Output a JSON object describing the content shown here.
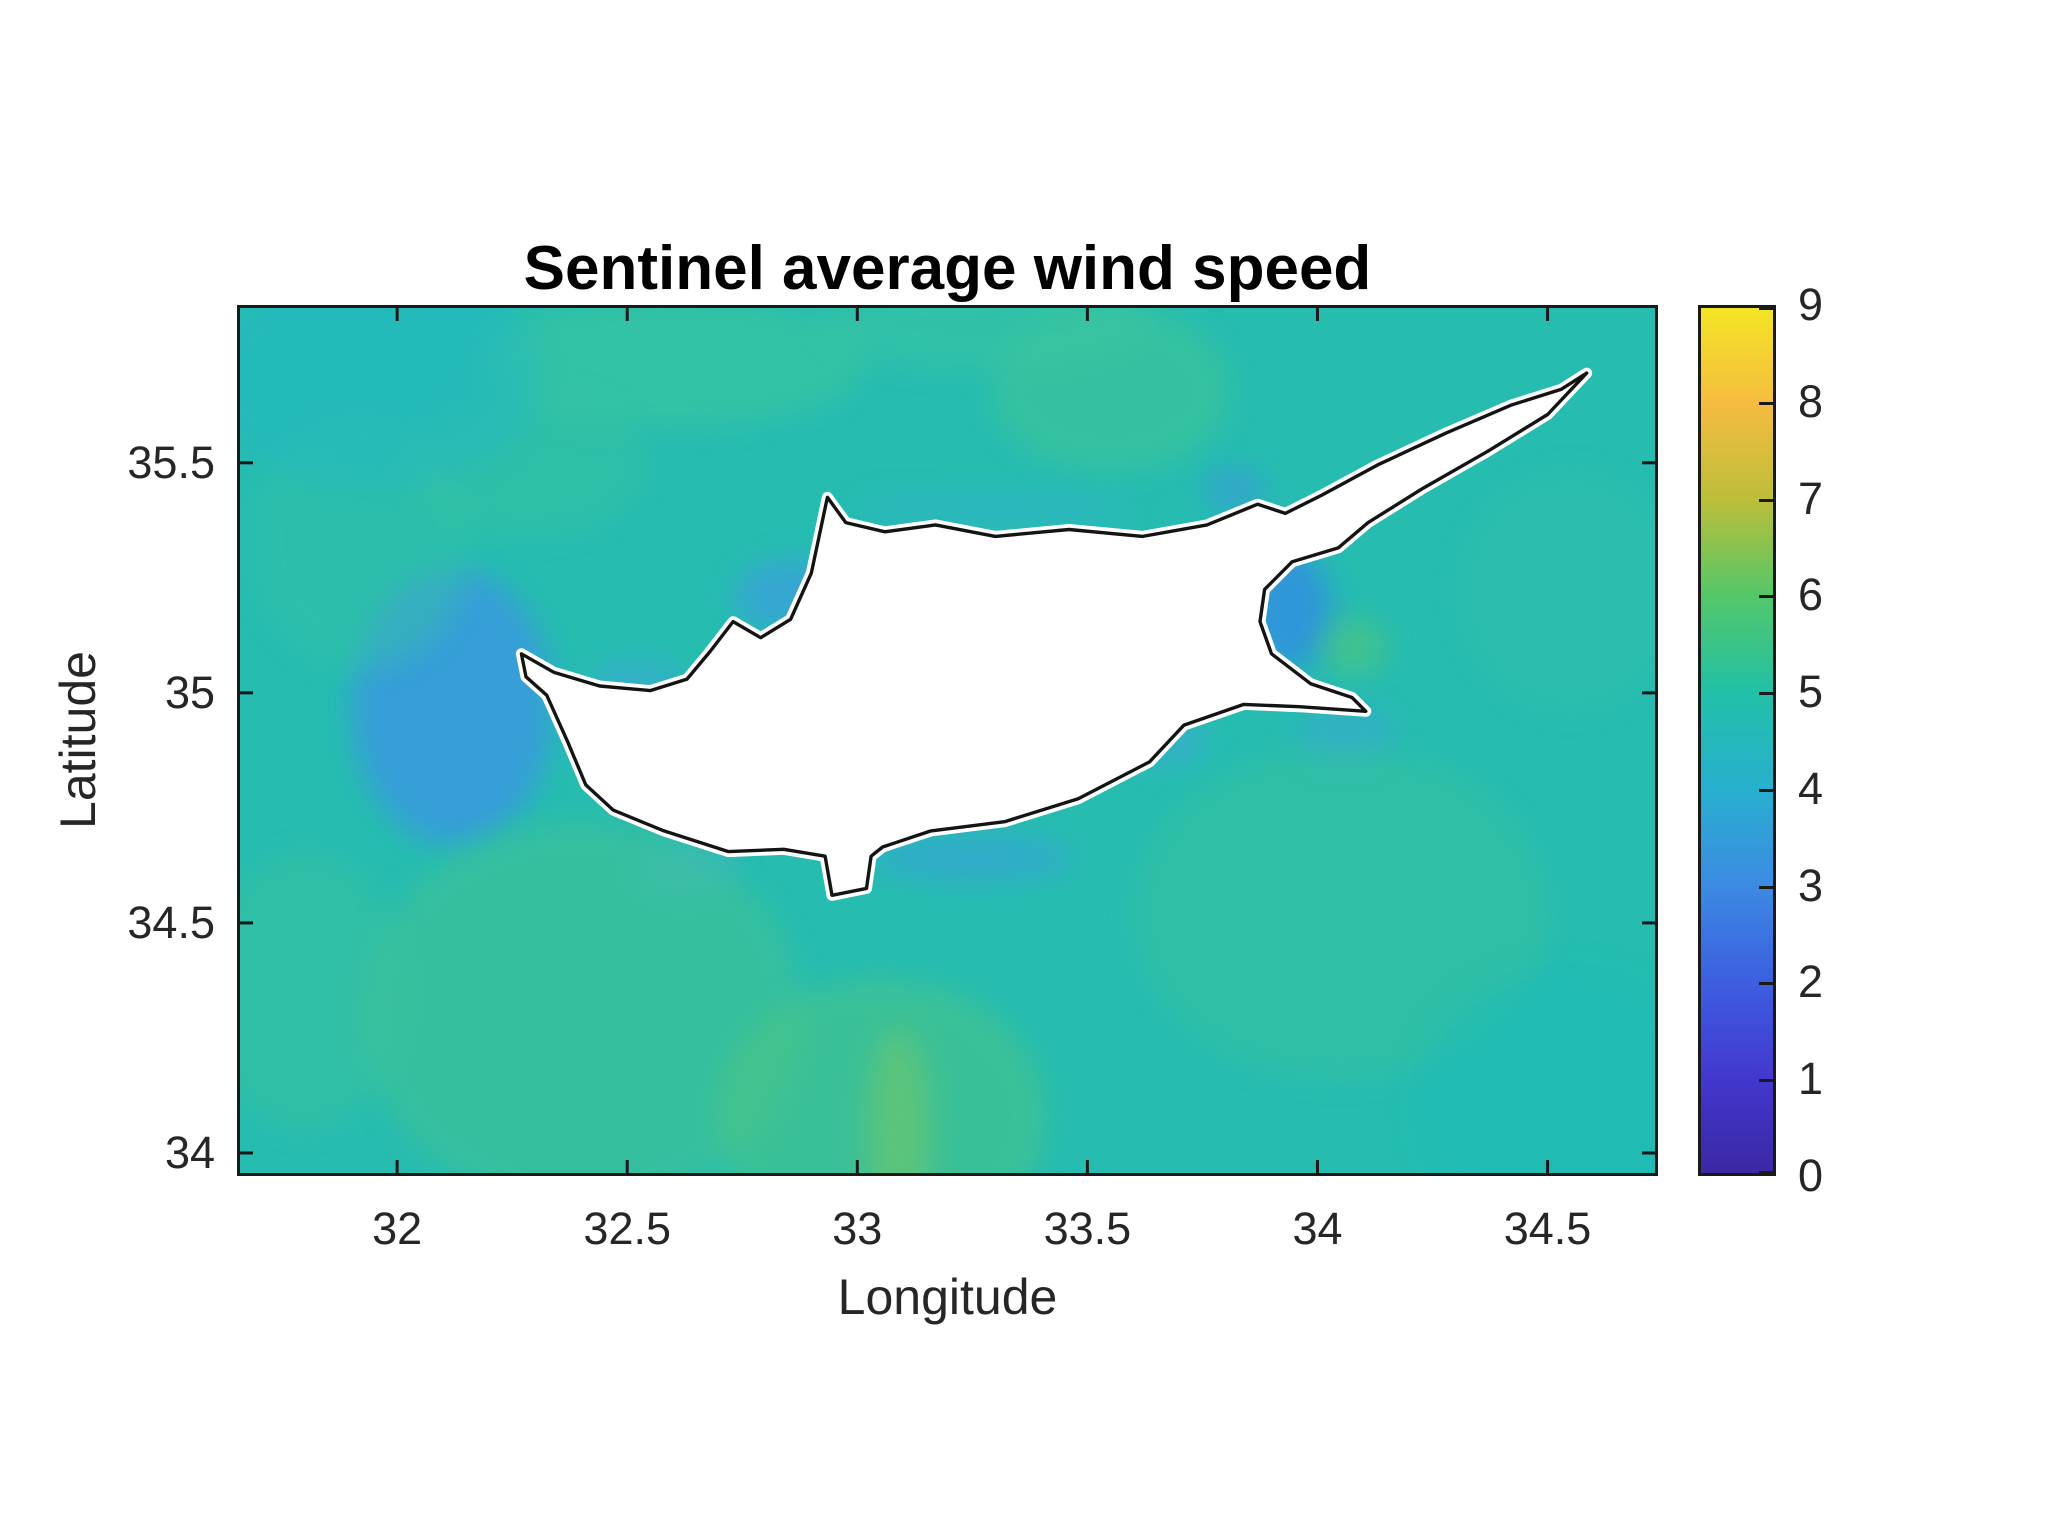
{
  "chart_data": {
    "type": "heatmap",
    "title": "Sentinel average wind speed",
    "xlabel": "Longitude",
    "ylabel": "Latitude",
    "xlim": [
      31.652,
      34.74
    ],
    "ylim": [
      33.95,
      35.843
    ],
    "grid": false,
    "xticks": [
      32,
      32.5,
      33,
      33.5,
      34,
      34.5
    ],
    "xtick_labels": [
      "32",
      "32.5",
      "33",
      "33.5",
      "34",
      "34.5"
    ],
    "yticks": [
      34,
      34.5,
      35,
      35.5
    ],
    "ytick_labels": [
      "34",
      "34.5",
      "35",
      "35.5"
    ],
    "colors": {
      "background": "#ffffff",
      "axis_text": "#262626",
      "frame": "#1a1a1a",
      "sea_base": "#26bcb0",
      "island_fill": "#ffffff",
      "island_outline": "#141414",
      "island_halo": "#ffffff"
    },
    "colorbar": {
      "min": 0,
      "max": 9,
      "ticks": [
        0,
        1,
        2,
        3,
        4,
        5,
        6,
        7,
        8,
        9
      ],
      "tick_labels": [
        "0",
        "1",
        "2",
        "3",
        "4",
        "5",
        "6",
        "7",
        "8",
        "9"
      ],
      "colormap": "parula",
      "stops": [
        {
          "v": 0,
          "c": "#3b28a5"
        },
        {
          "v": 1,
          "c": "#4338cf"
        },
        {
          "v": 2,
          "c": "#3d5fe0"
        },
        {
          "v": 3,
          "c": "#3c8be2"
        },
        {
          "v": 4,
          "c": "#28b0cf"
        },
        {
          "v": 5,
          "c": "#21c0a7"
        },
        {
          "v": 6,
          "c": "#53c76a"
        },
        {
          "v": 7,
          "c": "#bcbe3a"
        },
        {
          "v": 8,
          "c": "#f5bc40"
        },
        {
          "v": 9,
          "c": "#f3e524"
        }
      ]
    },
    "sea_patches": [
      {
        "lon": 32.12,
        "lat": 34.97,
        "rlon": 0.22,
        "rlat": 0.3,
        "color": "#3a97e2",
        "opacity": 0.8
      },
      {
        "lon": 32.52,
        "lat": 35.02,
        "rlon": 0.1,
        "rlat": 0.05,
        "color": "#3fa6dc",
        "opacity": 0.55
      },
      {
        "lon": 32.86,
        "lat": 35.21,
        "rlon": 0.13,
        "rlat": 0.08,
        "color": "#3d9fe0",
        "opacity": 0.7
      },
      {
        "lon": 33.3,
        "lat": 35.4,
        "rlon": 0.3,
        "rlat": 0.04,
        "color": "#32b2cd",
        "opacity": 0.5
      },
      {
        "lon": 33.82,
        "lat": 35.44,
        "rlon": 0.07,
        "rlat": 0.05,
        "color": "#3a9ade",
        "opacity": 0.6
      },
      {
        "lon": 33.94,
        "lat": 35.18,
        "rlon": 0.09,
        "rlat": 0.13,
        "color": "#318de4",
        "opacity": 0.8
      },
      {
        "lon": 34.06,
        "lat": 34.91,
        "rlon": 0.11,
        "rlat": 0.06,
        "color": "#3da6d8",
        "opacity": 0.5
      },
      {
        "lon": 33.25,
        "lat": 34.64,
        "rlon": 0.22,
        "rlat": 0.05,
        "color": "#37a3da",
        "opacity": 0.65
      },
      {
        "lon": 33.67,
        "lat": 34.9,
        "rlon": 0.09,
        "rlat": 0.06,
        "color": "#40a8d8",
        "opacity": 0.5
      },
      {
        "lon": 32.63,
        "lat": 34.62,
        "rlon": 0.11,
        "rlat": 0.05,
        "color": "#46b2d2",
        "opacity": 0.5
      },
      {
        "lon": 32.4,
        "lat": 34.3,
        "rlon": 0.48,
        "rlat": 0.42,
        "color": "#45c390",
        "opacity": 0.5
      },
      {
        "lon": 33.05,
        "lat": 34.08,
        "rlon": 0.36,
        "rlat": 0.3,
        "color": "#52c77c",
        "opacity": 0.45
      },
      {
        "lon": 33.09,
        "lat": 34.05,
        "rlon": 0.07,
        "rlat": 0.22,
        "color": "#8ccb53",
        "opacity": 0.4
      },
      {
        "lon": 34.05,
        "lat": 34.52,
        "rlon": 0.45,
        "rlat": 0.36,
        "color": "#3ec49a",
        "opacity": 0.4
      },
      {
        "lon": 32.6,
        "lat": 35.72,
        "rlon": 0.42,
        "rlat": 0.14,
        "color": "#3ec79b",
        "opacity": 0.55
      },
      {
        "lon": 33.55,
        "lat": 35.66,
        "rlon": 0.26,
        "rlat": 0.18,
        "color": "#44c793",
        "opacity": 0.5
      },
      {
        "lon": 33.28,
        "lat": 35.8,
        "rlon": 0.36,
        "rlat": 0.1,
        "color": "#3cc7a0",
        "opacity": 0.45
      },
      {
        "lon": 31.92,
        "lat": 35.33,
        "rlon": 0.24,
        "rlat": 0.28,
        "color": "#35c2a6",
        "opacity": 0.45
      },
      {
        "lon": 32.28,
        "lat": 35.5,
        "rlon": 0.26,
        "rlat": 0.16,
        "color": "#3ac49d",
        "opacity": 0.4
      },
      {
        "lon": 34.55,
        "lat": 35.22,
        "rlon": 0.24,
        "rlat": 0.26,
        "color": "#36c1a8",
        "opacity": 0.4
      },
      {
        "lon": 31.8,
        "lat": 34.35,
        "rlon": 0.22,
        "rlat": 0.3,
        "color": "#3fc49a",
        "opacity": 0.4
      },
      {
        "lon": 34.08,
        "lat": 35.1,
        "rlon": 0.07,
        "rlat": 0.06,
        "color": "#5ec86e",
        "opacity": 0.5
      },
      {
        "lon": 31.95,
        "lat": 35.68,
        "rlon": 0.36,
        "rlat": 0.24,
        "color": "#20b8c6",
        "opacity": 0.45
      },
      {
        "lon": 34.55,
        "lat": 34.1,
        "rlon": 0.34,
        "rlat": 0.3,
        "color": "#1ebbb7",
        "opacity": 0.5
      }
    ],
    "island": {
      "name": "Cyprus",
      "coords": [
        [
          32.27,
          35.085
        ],
        [
          32.34,
          35.045
        ],
        [
          32.44,
          35.015
        ],
        [
          32.55,
          35.005
        ],
        [
          32.63,
          35.03
        ],
        [
          32.68,
          35.09
        ],
        [
          32.73,
          35.155
        ],
        [
          32.79,
          35.12
        ],
        [
          32.855,
          35.16
        ],
        [
          32.9,
          35.26
        ],
        [
          32.935,
          35.425
        ],
        [
          32.975,
          35.37
        ],
        [
          33.06,
          35.35
        ],
        [
          33.17,
          35.365
        ],
        [
          33.3,
          35.34
        ],
        [
          33.46,
          35.355
        ],
        [
          33.62,
          35.34
        ],
        [
          33.76,
          35.365
        ],
        [
          33.87,
          35.41
        ],
        [
          33.93,
          35.39
        ],
        [
          34.01,
          35.43
        ],
        [
          34.13,
          35.495
        ],
        [
          34.28,
          35.565
        ],
        [
          34.42,
          35.625
        ],
        [
          34.53,
          35.66
        ],
        [
          34.585,
          35.695
        ],
        [
          34.5,
          35.605
        ],
        [
          34.37,
          35.525
        ],
        [
          34.23,
          35.445
        ],
        [
          34.11,
          35.37
        ],
        [
          34.045,
          35.315
        ],
        [
          33.945,
          35.285
        ],
        [
          33.885,
          35.225
        ],
        [
          33.875,
          35.155
        ],
        [
          33.9,
          35.085
        ],
        [
          33.985,
          35.02
        ],
        [
          34.075,
          34.99
        ],
        [
          34.105,
          34.96
        ],
        [
          33.96,
          34.97
        ],
        [
          33.84,
          34.975
        ],
        [
          33.71,
          34.93
        ],
        [
          33.635,
          34.85
        ],
        [
          33.48,
          34.77
        ],
        [
          33.32,
          34.72
        ],
        [
          33.16,
          34.7
        ],
        [
          33.055,
          34.665
        ],
        [
          33.03,
          34.645
        ],
        [
          33.02,
          34.575
        ],
        [
          32.945,
          34.56
        ],
        [
          32.93,
          34.645
        ],
        [
          32.84,
          34.66
        ],
        [
          32.72,
          34.655
        ],
        [
          32.58,
          34.7
        ],
        [
          32.47,
          34.745
        ],
        [
          32.41,
          34.8
        ],
        [
          32.37,
          34.895
        ],
        [
          32.325,
          34.995
        ],
        [
          32.28,
          35.035
        ]
      ]
    }
  }
}
